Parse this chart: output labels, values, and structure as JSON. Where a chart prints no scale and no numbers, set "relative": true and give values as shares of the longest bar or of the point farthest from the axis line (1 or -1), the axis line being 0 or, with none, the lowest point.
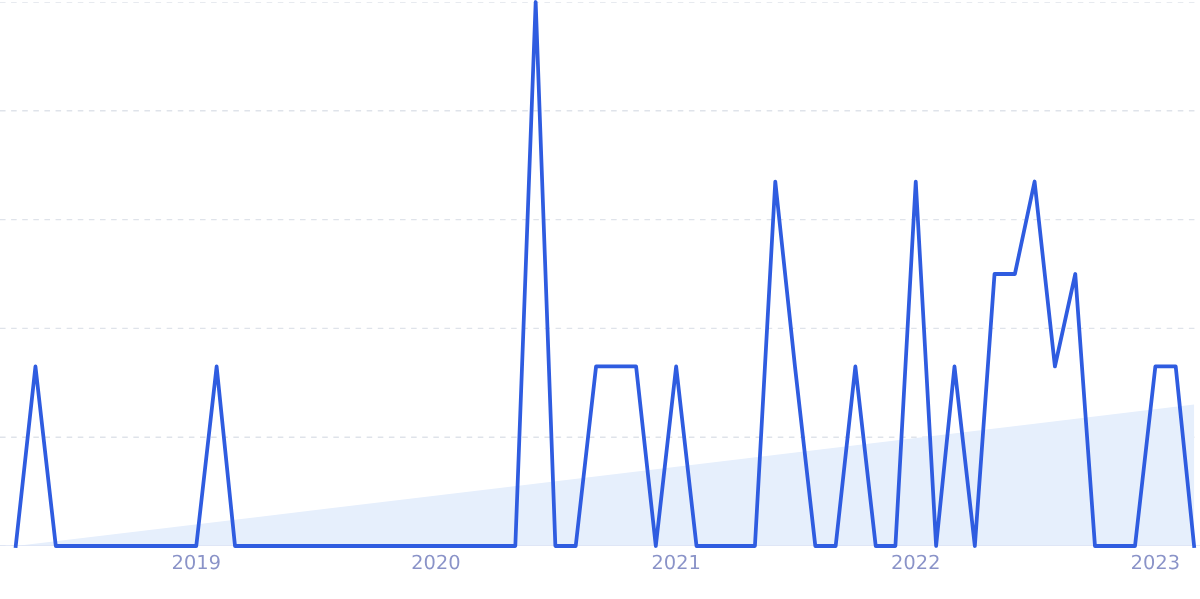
{
  "chart_data": {
    "type": "line",
    "relative": true,
    "grid": "y",
    "line_style": "solid",
    "marker": "none",
    "xlim": [
      "2018-03-08",
      "2023-03-10"
    ],
    "xticks": [
      {
        "value": "2019-01-01",
        "label": "2019"
      },
      {
        "value": "2020-01-01",
        "label": "2020"
      },
      {
        "value": "2021-01-01",
        "label": "2021"
      },
      {
        "value": "2022-01-01",
        "label": "2022"
      },
      {
        "value": "2023-01-01",
        "label": "2023"
      }
    ],
    "series": [
      {
        "type": "area",
        "color": "#e6effc",
        "x": [
          "2018-04",
          "2023-03"
        ],
        "values": [
          0,
          0.26
        ]
      },
      {
        "color": "#2f5ce0",
        "x": [
          "2018-04",
          "2018-05",
          "2018-06",
          "2018-07",
          "2018-08",
          "2018-09",
          "2018-10",
          "2018-11",
          "2018-12",
          "2019-01",
          "2019-02",
          "2019-03",
          "2019-04",
          "2019-05",
          "2019-06",
          "2019-07",
          "2019-08",
          "2019-09",
          "2019-10",
          "2019-11",
          "2019-12",
          "2020-01",
          "2020-02",
          "2020-03",
          "2020-04",
          "2020-05",
          "2020-06",
          "2020-07",
          "2020-08",
          "2020-09",
          "2020-10",
          "2020-11",
          "2020-12",
          "2021-01",
          "2021-02",
          "2021-03",
          "2021-04",
          "2021-05",
          "2021-06",
          "2021-07",
          "2021-08",
          "2021-09",
          "2021-10",
          "2021-11",
          "2021-12",
          "2022-01",
          "2022-02",
          "2022-03",
          "2022-04",
          "2022-05",
          "2022-06",
          "2022-07",
          "2022-08",
          "2022-09",
          "2022-10",
          "2022-11",
          "2022-12",
          "2023-01",
          "2023-02",
          "2023-03"
        ],
        "values": [
          0,
          0.33,
          0,
          0,
          0,
          0,
          0,
          0,
          0,
          0,
          0.33,
          0,
          0,
          0,
          0,
          0,
          0,
          0,
          0,
          0,
          0,
          0,
          0,
          0,
          0,
          0,
          1,
          0,
          0,
          0.33,
          0.33,
          0.33,
          0,
          0.33,
          0,
          0,
          0,
          0,
          0.67,
          0.33,
          0,
          0,
          0.33,
          0,
          0,
          0.67,
          0,
          0.33,
          0,
          0.5,
          0.5,
          0.67,
          0.33,
          0.5,
          0,
          0,
          0,
          0.33,
          0.33,
          0
        ]
      }
    ]
  }
}
